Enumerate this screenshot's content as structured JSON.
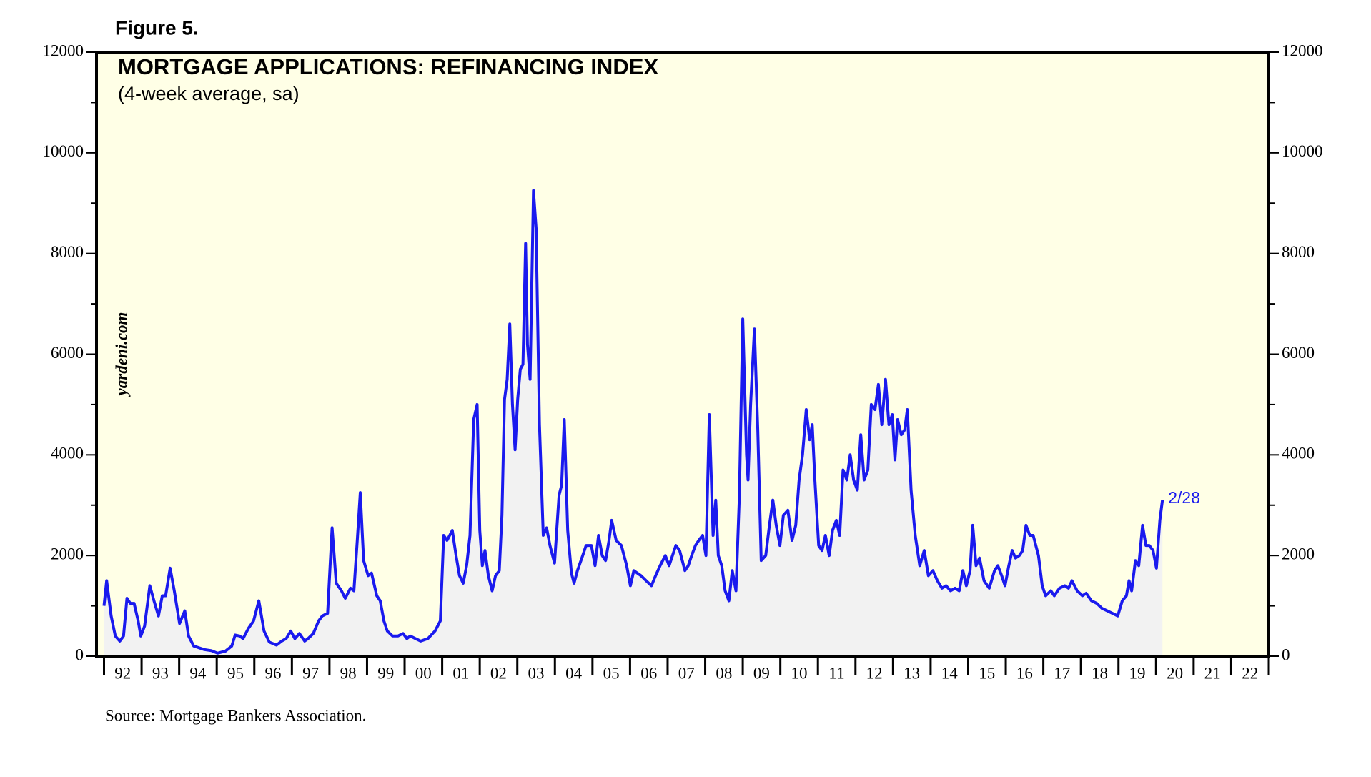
{
  "chart_data": {
    "type": "area-line",
    "figure_label": "Figure 5.",
    "title": "MORTGAGE APPLICATIONS: REFINANCING INDEX",
    "subtitle": "(4-week average, sa)",
    "watermark": "yardeni.com",
    "source": "Source:  Mortgage Bankers Association.",
    "annotation": "2/28",
    "color": "#1a1aee",
    "fill": "#f2f2f2",
    "background": "#ffffe6",
    "xlim": [
      1991.8,
      2023
    ],
    "ylim": [
      0,
      12000
    ],
    "yticks": [
      0,
      2000,
      4000,
      6000,
      8000,
      10000,
      12000
    ],
    "yminor_ticks": [
      1000,
      3000,
      5000,
      7000,
      9000,
      11000
    ],
    "y2lim": [
      0,
      12000
    ],
    "y2ticks": [
      0,
      2000,
      4000,
      6000,
      8000,
      10000,
      12000
    ],
    "xtick_marks": [
      1992,
      1993,
      1994,
      1995,
      1996,
      1997,
      1998,
      1999,
      2000,
      2001,
      2002,
      2003,
      2004,
      2005,
      2006,
      2007,
      2008,
      2009,
      2010,
      2011,
      2012,
      2013,
      2014,
      2015,
      2016,
      2017,
      2018,
      2019,
      2020,
      2021,
      2022,
      2023
    ],
    "xticks": [
      {
        "value": 1992.5,
        "label": "92"
      },
      {
        "value": 1993.5,
        "label": "93"
      },
      {
        "value": 1994.5,
        "label": "94"
      },
      {
        "value": 1995.5,
        "label": "95"
      },
      {
        "value": 1996.5,
        "label": "96"
      },
      {
        "value": 1997.5,
        "label": "97"
      },
      {
        "value": 1998.5,
        "label": "98"
      },
      {
        "value": 1999.5,
        "label": "99"
      },
      {
        "value": 2000.5,
        "label": "00"
      },
      {
        "value": 2001.5,
        "label": "01"
      },
      {
        "value": 2002.5,
        "label": "02"
      },
      {
        "value": 2003.5,
        "label": "03"
      },
      {
        "value": 2004.5,
        "label": "04"
      },
      {
        "value": 2005.5,
        "label": "05"
      },
      {
        "value": 2006.5,
        "label": "06"
      },
      {
        "value": 2007.5,
        "label": "07"
      },
      {
        "value": 2008.5,
        "label": "08"
      },
      {
        "value": 2009.5,
        "label": "09"
      },
      {
        "value": 2010.5,
        "label": "10"
      },
      {
        "value": 2011.5,
        "label": "11"
      },
      {
        "value": 2012.5,
        "label": "12"
      },
      {
        "value": 2013.5,
        "label": "13"
      },
      {
        "value": 2014.5,
        "label": "14"
      },
      {
        "value": 2015.5,
        "label": "15"
      },
      {
        "value": 2016.5,
        "label": "16"
      },
      {
        "value": 2017.5,
        "label": "17"
      },
      {
        "value": 2018.5,
        "label": "18"
      },
      {
        "value": 2019.5,
        "label": "19"
      },
      {
        "value": 2020.5,
        "label": "20"
      },
      {
        "value": 2021.5,
        "label": "21"
      },
      {
        "value": 2022.5,
        "label": "22"
      }
    ],
    "x": [
      1992.0,
      1992.07,
      1992.19,
      1992.3,
      1992.42,
      1992.52,
      1992.61,
      1992.7,
      1992.8,
      1992.91,
      1992.98,
      1993.08,
      1993.22,
      1993.33,
      1993.45,
      1993.55,
      1993.64,
      1993.76,
      1993.87,
      1994.01,
      1994.15,
      1994.25,
      1994.39,
      1994.67,
      1994.86,
      1995.02,
      1995.23,
      1995.4,
      1995.49,
      1995.61,
      1995.7,
      1995.84,
      1995.98,
      1996.12,
      1996.26,
      1996.4,
      1996.59,
      1996.73,
      1996.85,
      1996.97,
      1997.08,
      1997.2,
      1997.34,
      1997.43,
      1997.57,
      1997.71,
      1997.81,
      1997.95,
      1998.07,
      1998.18,
      1998.32,
      1998.42,
      1998.56,
      1998.65,
      1998.74,
      1998.82,
      1998.91,
      1999.03,
      1999.12,
      1999.26,
      1999.35,
      1999.45,
      1999.54,
      1999.68,
      1999.82,
      1999.96,
      2000.06,
      2000.15,
      2000.29,
      2000.43,
      2000.62,
      2000.81,
      2000.95,
      2001.04,
      2001.13,
      2001.27,
      2001.37,
      2001.46,
      2001.56,
      2001.65,
      2001.74,
      2001.84,
      2001.93,
      2002.0,
      2002.07,
      2002.14,
      2002.23,
      2002.33,
      2002.42,
      2002.52,
      2002.59,
      2002.66,
      2002.73,
      2002.8,
      2002.87,
      2002.94,
      2003.01,
      2003.08,
      2003.15,
      2003.22,
      2003.27,
      2003.34,
      2003.43,
      2003.5,
      2003.59,
      2003.69,
      2003.78,
      2003.87,
      2003.99,
      2004.11,
      2004.18,
      2004.25,
      2004.34,
      2004.44,
      2004.51,
      2004.6,
      2004.74,
      2004.83,
      2004.97,
      2005.07,
      2005.16,
      2005.26,
      2005.35,
      2005.44,
      2005.51,
      2005.63,
      2005.77,
      2005.91,
      2006.01,
      2006.1,
      2006.29,
      2006.43,
      2006.57,
      2006.68,
      2006.8,
      2006.94,
      2007.04,
      2007.13,
      2007.22,
      2007.32,
      2007.46,
      2007.55,
      2007.64,
      2007.74,
      2007.83,
      2007.93,
      2008.02,
      2008.11,
      2008.21,
      2008.28,
      2008.35,
      2008.44,
      2008.53,
      2008.63,
      2008.72,
      2008.82,
      2008.91,
      2009.0,
      2009.1,
      2009.14,
      2009.21,
      2009.31,
      2009.4,
      2009.49,
      2009.61,
      2009.71,
      2009.8,
      2009.89,
      2009.99,
      2010.08,
      2010.2,
      2010.31,
      2010.41,
      2010.5,
      2010.59,
      2010.69,
      2010.78,
      2010.85,
      2010.92,
      2011.02,
      2011.11,
      2011.2,
      2011.3,
      2011.39,
      2011.49,
      2011.58,
      2011.67,
      2011.77,
      2011.86,
      2011.95,
      2012.05,
      2012.14,
      2012.23,
      2012.33,
      2012.42,
      2012.52,
      2012.61,
      2012.7,
      2012.8,
      2012.89,
      2012.98,
      2013.05,
      2013.12,
      2013.22,
      2013.31,
      2013.38,
      2013.48,
      2013.59,
      2013.71,
      2013.83,
      2013.94,
      2014.06,
      2014.18,
      2014.3,
      2014.41,
      2014.53,
      2014.65,
      2014.76,
      2014.86,
      2014.95,
      2015.05,
      2015.12,
      2015.21,
      2015.3,
      2015.42,
      2015.56,
      2015.7,
      2015.79,
      2015.89,
      2015.98,
      2016.08,
      2016.17,
      2016.26,
      2016.36,
      2016.45,
      2016.54,
      2016.64,
      2016.73,
      2016.87,
      2016.97,
      2017.06,
      2017.2,
      2017.29,
      2017.43,
      2017.57,
      2017.67,
      2017.76,
      2017.9,
      2018.04,
      2018.14,
      2018.28,
      2018.42,
      2018.56,
      2018.7,
      2018.84,
      2018.98,
      2019.1,
      2019.21,
      2019.28,
      2019.35,
      2019.45,
      2019.54,
      2019.64,
      2019.73,
      2019.82,
      2019.92,
      2020.01,
      2020.1,
      2020.17
    ],
    "values": [
      1000,
      1500,
      800,
      400,
      300,
      400,
      1150,
      1050,
      1050,
      700,
      400,
      600,
      1400,
      1100,
      800,
      1200,
      1200,
      1750,
      1300,
      650,
      900,
      400,
      200,
      130,
      110,
      60,
      100,
      200,
      420,
      400,
      350,
      550,
      700,
      1100,
      500,
      280,
      220,
      300,
      350,
      500,
      350,
      450,
      300,
      350,
      450,
      700,
      800,
      850,
      2550,
      1450,
      1300,
      1150,
      1350,
      1300,
      2300,
      3250,
      1900,
      1600,
      1650,
      1200,
      1100,
      700,
      500,
      400,
      400,
      450,
      350,
      400,
      350,
      300,
      350,
      500,
      700,
      2400,
      2300,
      2500,
      2000,
      1600,
      1450,
      1800,
      2400,
      4700,
      5000,
      2500,
      1800,
      2100,
      1600,
      1300,
      1600,
      1700,
      2800,
      5100,
      5500,
      6600,
      5000,
      4100,
      5100,
      5700,
      5800,
      8200,
      6200,
      5500,
      9250,
      8500,
      4600,
      2400,
      2550,
      2200,
      1850,
      3200,
      3400,
      4700,
      2500,
      1650,
      1450,
      1700,
      2000,
      2200,
      2200,
      1800,
      2400,
      2000,
      1900,
      2300,
      2700,
      2300,
      2200,
      1800,
      1400,
      1700,
      1600,
      1500,
      1400,
      1600,
      1800,
      2000,
      1800,
      2000,
      2200,
      2100,
      1700,
      1800,
      2000,
      2200,
      2300,
      2400,
      2000,
      4800,
      2400,
      3100,
      2000,
      1800,
      1300,
      1100,
      1700,
      1300,
      3200,
      6700,
      4000,
      3500,
      5000,
      6500,
      4500,
      1900,
      2000,
      2600,
      3100,
      2600,
      2200,
      2800,
      2900,
      2300,
      2600,
      3500,
      4000,
      4900,
      4300,
      4600,
      3500,
      2200,
      2100,
      2400,
      2000,
      2500,
      2700,
      2400,
      3700,
      3500,
      4000,
      3500,
      3300,
      4400,
      3500,
      3700,
      5000,
      4900,
      5400,
      4600,
      5500,
      4600,
      4800,
      3900,
      4700,
      4400,
      4500,
      4900,
      3300,
      2400,
      1800,
      2100,
      1600,
      1700,
      1500,
      1350,
      1400,
      1300,
      1350,
      1300,
      1700,
      1400,
      1700,
      2600,
      1800,
      1950,
      1500,
      1350,
      1700,
      1800,
      1600,
      1400,
      1800,
      2100,
      1950,
      2000,
      2100,
      2600,
      2400,
      2400,
      2000,
      1400,
      1200,
      1300,
      1200,
      1350,
      1400,
      1350,
      1500,
      1300,
      1200,
      1250,
      1100,
      1050,
      950,
      900,
      850,
      800,
      1100,
      1200,
      1500,
      1300,
      1900,
      1800,
      2600,
      2200,
      2200,
      2100,
      1750,
      2700,
      3100
    ]
  }
}
